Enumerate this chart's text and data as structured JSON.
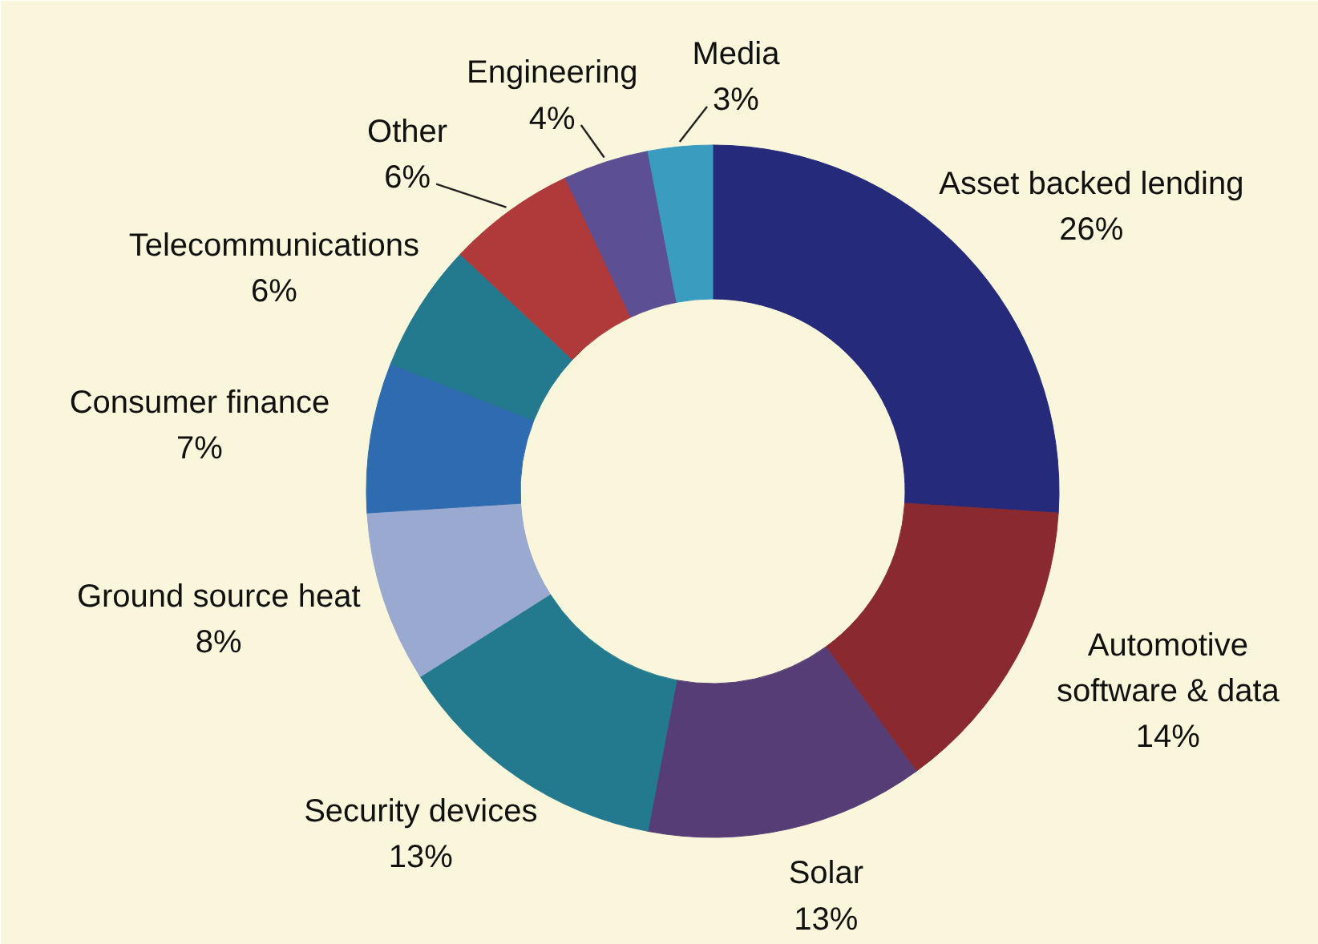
{
  "chart_data": {
    "type": "donut",
    "categories": [
      "Asset backed lending",
      "Automotive\nsoftware & data",
      "Solar",
      "Security devices",
      "Ground source heat",
      "Consumer finance",
      "Telecommunications",
      "Other",
      "Engineering",
      "Media"
    ],
    "values": [
      26,
      14,
      13,
      13,
      8,
      7,
      6,
      6,
      4,
      3
    ],
    "value_labels": [
      "26%",
      "14%",
      "13%",
      "13%",
      "8%",
      "7%",
      "6%",
      "6%",
      "4%",
      "3%"
    ],
    "colors": [
      "#252a7a",
      "#8b2a2e",
      "#573d75",
      "#237a8e",
      "#9aa9cf",
      "#2f6bb0",
      "#237a8e",
      "#b03a3a",
      "#5c4f94",
      "#3a9dbf"
    ]
  }
}
